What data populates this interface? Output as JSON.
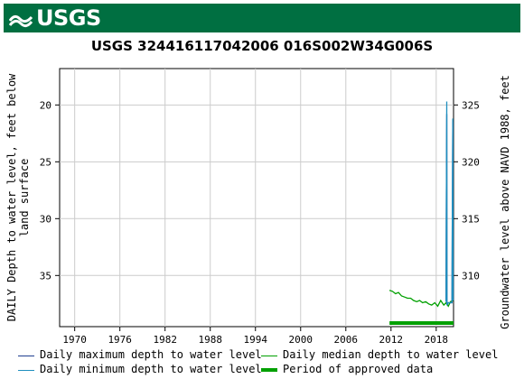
{
  "header": {
    "logo_text": "USGS",
    "brand_color": "#006f41"
  },
  "chart_data": {
    "type": "line",
    "title": "USGS 324416117042006 016S002W34G006S",
    "ylabel_left_line1": "DAILY Depth to water level, feet below",
    "ylabel_left_line2": "land surface",
    "ylabel_right": "Groundwater level above NAVD 1988, feet",
    "x_ticks": [
      "1970",
      "1976",
      "1982",
      "1988",
      "1994",
      "2000",
      "2006",
      "2012",
      "2018"
    ],
    "xlim": [
      1968.0,
      2020.3
    ],
    "y_ticks_left": [
      "20",
      "25",
      "30",
      "35"
    ],
    "ylim_left": [
      39.5,
      16.8
    ],
    "y_ticks_right": [
      "325",
      "320",
      "315",
      "310"
    ],
    "right_axis_offset": 345.0,
    "grid": true,
    "series": [
      {
        "name": "Daily maximum depth to water level",
        "color": "#1f3f8f",
        "x": [
          2019.3,
          2019.35,
          2019.4,
          2019.42,
          2019.5,
          2019.6,
          2020.1,
          2020.15,
          2020.2,
          2020.25,
          2020.3
        ],
        "y": [
          37.3,
          27.8,
          20.8,
          37.6,
          37.5,
          37.4,
          37.4,
          29.5,
          21.5,
          37.2,
          37.2
        ]
      },
      {
        "name": "Daily minimum depth to water level",
        "color": "#1f8fbf",
        "x": [
          2019.3,
          2019.35,
          2019.4,
          2019.42,
          2019.5,
          2019.6,
          2020.1,
          2020.15,
          2020.2,
          2020.25,
          2020.3
        ],
        "y": [
          37.3,
          27.8,
          19.7,
          37.6,
          37.5,
          37.4,
          37.4,
          29.2,
          21.2,
          37.2,
          37.2
        ]
      },
      {
        "name": "Daily median depth to water level",
        "color": "#00a000",
        "x": [
          2011.8,
          2012.2,
          2012.6,
          2013.0,
          2013.4,
          2013.8,
          2014.2,
          2014.6,
          2015.0,
          2015.4,
          2015.8,
          2016.2,
          2016.6,
          2017.0,
          2017.4,
          2017.8,
          2018.2,
          2018.6,
          2019.0,
          2019.3,
          2019.6,
          2019.9,
          2020.3
        ],
        "y": [
          36.3,
          36.4,
          36.6,
          36.5,
          36.8,
          36.9,
          37.0,
          37.0,
          37.2,
          37.3,
          37.2,
          37.4,
          37.3,
          37.5,
          37.6,
          37.4,
          37.7,
          37.2,
          37.6,
          37.4,
          37.7,
          37.3,
          37.2
        ]
      }
    ],
    "approved_period": {
      "name": "Period of approved data",
      "color": "#00a000",
      "start": 2011.8,
      "end": 2020.3
    }
  },
  "legend": {
    "max_label": "Daily maximum depth to water level",
    "median_label": "Daily median depth to water level",
    "min_label": "Daily minimum depth to water level",
    "period_label": "Period of approved data"
  }
}
